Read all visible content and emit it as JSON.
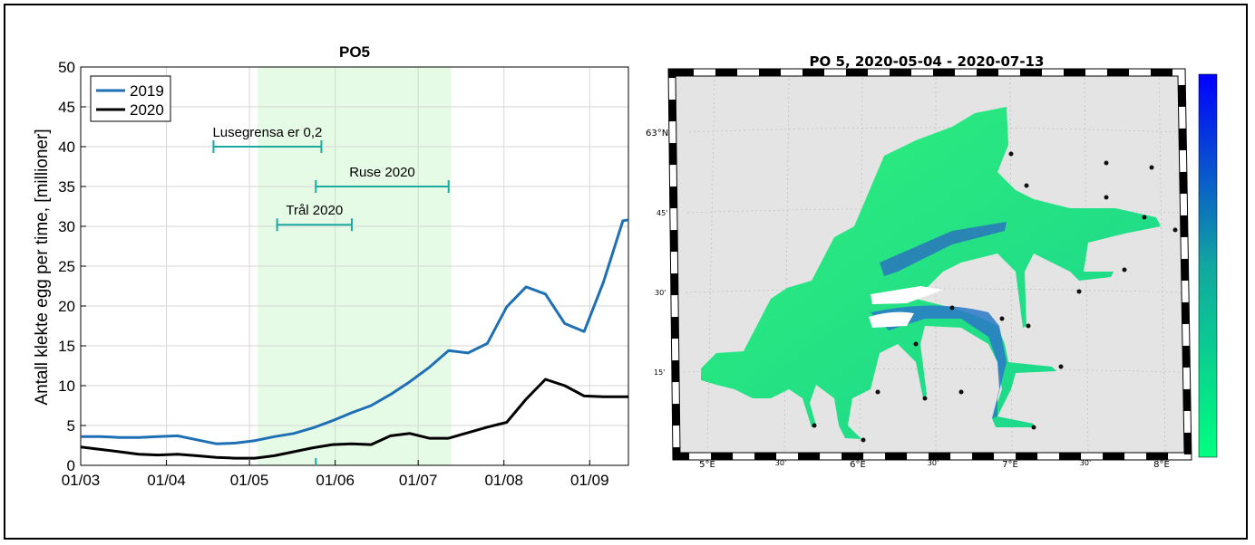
{
  "chart_data": [
    {
      "type": "line",
      "title": "PO5",
      "xlabel": "",
      "ylabel": "Antall klekte egg per time, [millioner]",
      "xlim": [
        "2020-03-01",
        "2020-09-15"
      ],
      "ylim": [
        0,
        50
      ],
      "yticks": [
        0,
        5,
        10,
        15,
        20,
        25,
        30,
        35,
        40,
        45,
        50
      ],
      "xticks": [
        {
          "date": "2020-03-01",
          "label": "01/03"
        },
        {
          "date": "2020-04-01",
          "label": "01/04"
        },
        {
          "date": "2020-05-01",
          "label": "01/05"
        },
        {
          "date": "2020-06-01",
          "label": "01/06"
        },
        {
          "date": "2020-07-01",
          "label": "01/07"
        },
        {
          "date": "2020-08-01",
          "label": "01/08"
        },
        {
          "date": "2020-09-01",
          "label": "01/09"
        }
      ],
      "grid": true,
      "legend_position": "top-left",
      "shaded_period": {
        "start": "2020-05-04",
        "end": "2020-07-13",
        "color": "#e6fbe6"
      },
      "series": [
        {
          "name": "2019",
          "color": "#1f6fb4",
          "points": [
            [
              "2020-03-01",
              3.6
            ],
            [
              "2020-03-08",
              3.6
            ],
            [
              "2020-03-15",
              3.5
            ],
            [
              "2020-03-22",
              3.5
            ],
            [
              "2020-03-29",
              3.6
            ],
            [
              "2020-04-05",
              3.7
            ],
            [
              "2020-04-12",
              3.2
            ],
            [
              "2020-04-19",
              2.7
            ],
            [
              "2020-04-26",
              2.8
            ],
            [
              "2020-05-03",
              3.1
            ],
            [
              "2020-05-10",
              3.6
            ],
            [
              "2020-05-17",
              4.0
            ],
            [
              "2020-05-24",
              4.7
            ],
            [
              "2020-05-31",
              5.6
            ],
            [
              "2020-06-07",
              6.6
            ],
            [
              "2020-06-14",
              7.5
            ],
            [
              "2020-06-21",
              8.9
            ],
            [
              "2020-06-28",
              10.5
            ],
            [
              "2020-07-05",
              12.3
            ],
            [
              "2020-07-12",
              14.4
            ],
            [
              "2020-07-19",
              14.1
            ],
            [
              "2020-07-26",
              15.3
            ],
            [
              "2020-08-02",
              19.9
            ],
            [
              "2020-08-09",
              22.4
            ],
            [
              "2020-08-16",
              21.5
            ],
            [
              "2020-08-23",
              17.8
            ],
            [
              "2020-08-30",
              16.8
            ],
            [
              "2020-09-06",
              23.0
            ],
            [
              "2020-09-13",
              30.7
            ],
            [
              "2020-09-15",
              30.8
            ]
          ]
        },
        {
          "name": "2020",
          "color": "#000000",
          "points": [
            [
              "2020-03-01",
              2.3
            ],
            [
              "2020-03-08",
              2.0
            ],
            [
              "2020-03-15",
              1.7
            ],
            [
              "2020-03-22",
              1.4
            ],
            [
              "2020-03-29",
              1.3
            ],
            [
              "2020-04-05",
              1.4
            ],
            [
              "2020-04-12",
              1.2
            ],
            [
              "2020-04-19",
              1.0
            ],
            [
              "2020-04-26",
              0.9
            ],
            [
              "2020-05-03",
              0.9
            ],
            [
              "2020-05-10",
              1.2
            ],
            [
              "2020-05-17",
              1.7
            ],
            [
              "2020-05-24",
              2.2
            ],
            [
              "2020-05-31",
              2.6
            ],
            [
              "2020-06-07",
              2.7
            ],
            [
              "2020-06-14",
              2.6
            ],
            [
              "2020-06-21",
              3.7
            ],
            [
              "2020-06-28",
              4.0
            ],
            [
              "2020-07-05",
              3.4
            ],
            [
              "2020-07-12",
              3.4
            ],
            [
              "2020-07-19",
              4.1
            ],
            [
              "2020-07-26",
              4.8
            ],
            [
              "2020-08-02",
              5.4
            ],
            [
              "2020-08-09",
              8.3
            ],
            [
              "2020-08-16",
              10.8
            ],
            [
              "2020-08-23",
              10.0
            ],
            [
              "2020-08-30",
              8.7
            ],
            [
              "2020-09-06",
              8.6
            ],
            [
              "2020-09-15",
              8.6
            ]
          ]
        }
      ],
      "intervals": [
        {
          "label": "Lusegrensa er 0,2",
          "start": "2020-04-18",
          "end": "2020-05-27",
          "y": 40.0,
          "color": "#1aaa9f"
        },
        {
          "label": "Ruse 2020",
          "start": "2020-05-25",
          "end": "2020-07-12",
          "y": 35.0,
          "color": "#1aaa9f"
        },
        {
          "label": "Trål 2020",
          "start": "2020-05-11",
          "end": "2020-06-07",
          "y": 30.2,
          "color": "#1aaa9f"
        }
      ],
      "markers": [
        {
          "date": "2020-05-25",
          "y": 0.2,
          "color": "#1aaa9f"
        }
      ]
    },
    {
      "type": "heatmap",
      "title": "PO 5, 2020-05-04 - 2020-07-13",
      "x_ticks": [
        "5°E",
        "30'",
        "6°E",
        "30'",
        "7°E",
        "30'",
        "8°E"
      ],
      "y_ticks": [
        "63°N",
        "45'",
        "30'",
        "15'"
      ],
      "colorbar": {
        "low_color": "#00ff7f",
        "high_color": "#0000ff"
      },
      "land_color": "#e4e4e4"
    }
  ]
}
